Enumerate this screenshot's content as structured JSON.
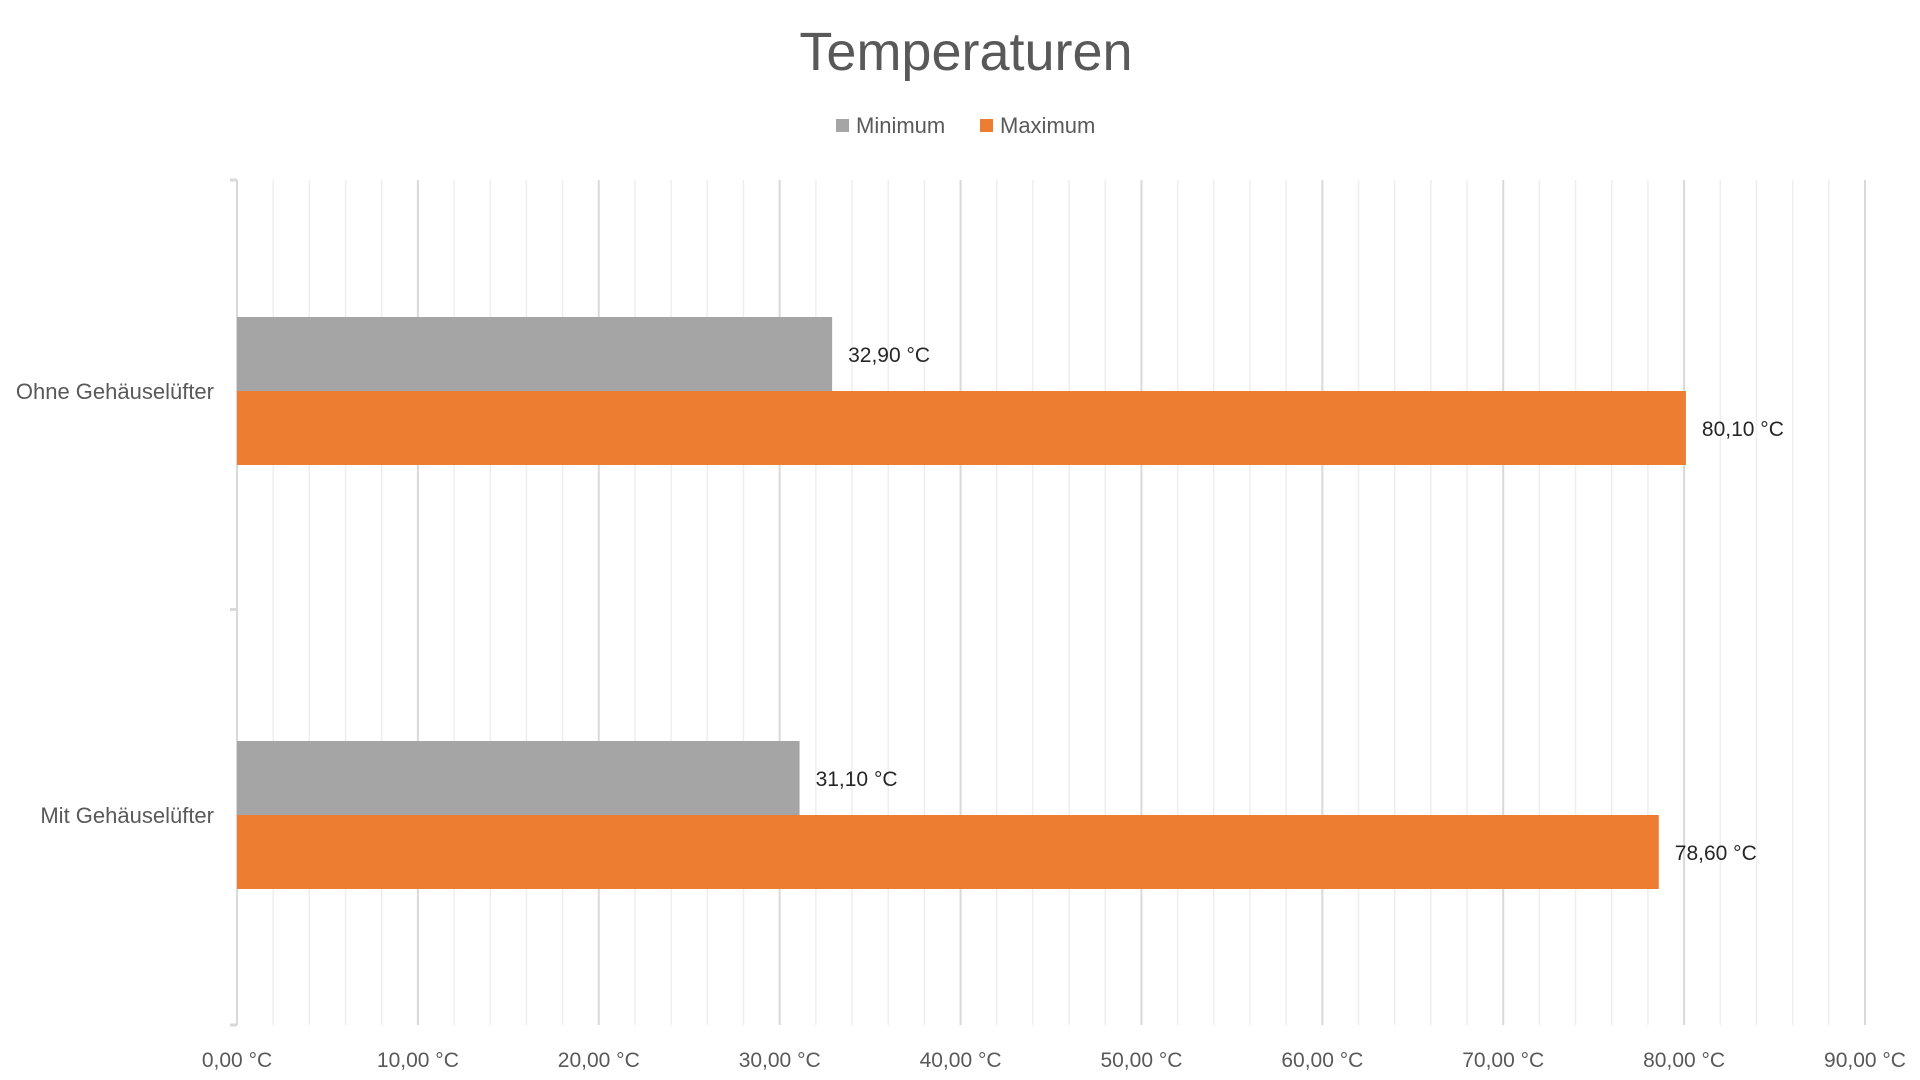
{
  "chart_data": {
    "type": "bar",
    "orientation": "horizontal",
    "title": "Temperaturen",
    "categories": [
      "Ohne Gehäuselüfter",
      "Mit Gehäuselüfter"
    ],
    "series": [
      {
        "name": "Minimum",
        "color": "#A5A5A5",
        "values": [
          32.9,
          31.1
        ],
        "labels": [
          "32,90 °C",
          "31,10 °C"
        ]
      },
      {
        "name": "Maximum",
        "color": "#ED7D31",
        "values": [
          80.1,
          78.6
        ],
        "labels": [
          "80,10 °C",
          "78,60 °C"
        ]
      }
    ],
    "xlim": [
      0,
      90
    ],
    "major_step": 10,
    "minor_step": 2,
    "tick_labels": [
      "0,00 °C",
      "10,00 °C",
      "20,00 °C",
      "30,00 °C",
      "40,00 °C",
      "50,00 °C",
      "60,00 °C",
      "70,00 °C",
      "80,00 °C",
      "90,00 °C"
    ],
    "grid": true,
    "legend_position": "top-center",
    "colors": {
      "major_grid": "#D9D9D9",
      "minor_grid": "#EEEEEE",
      "axis": "#D9D9D9"
    }
  }
}
